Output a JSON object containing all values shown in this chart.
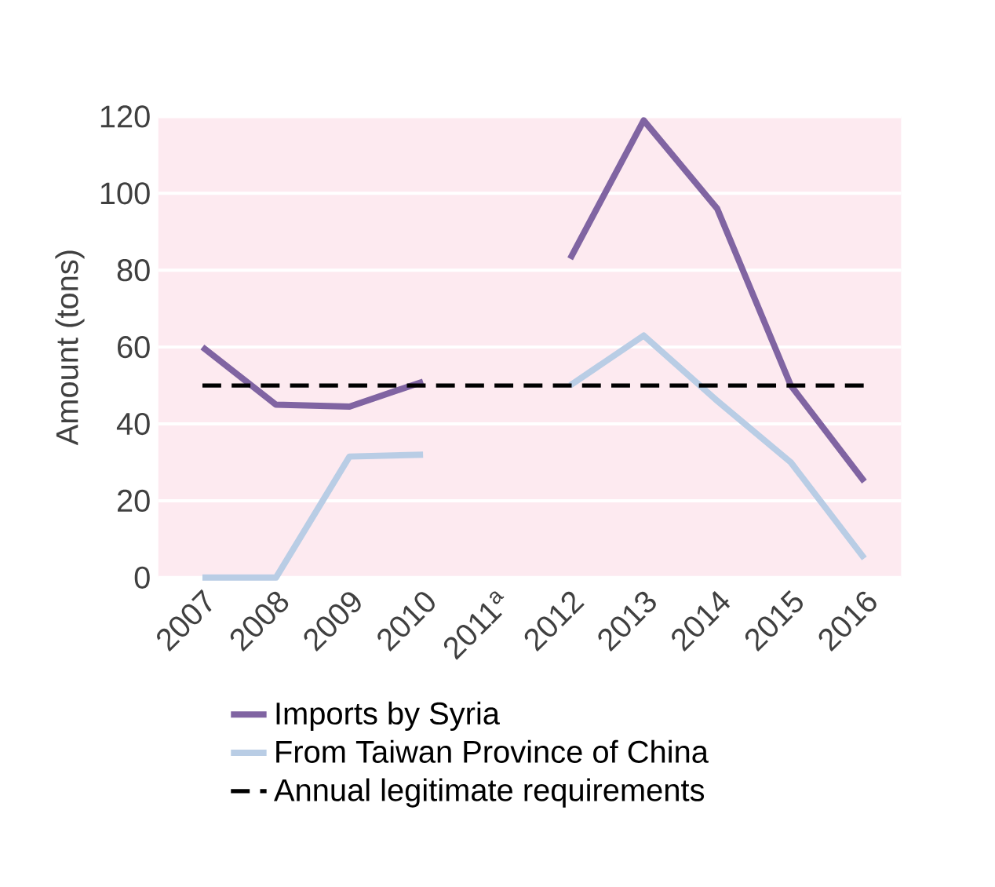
{
  "chart_data": {
    "type": "line",
    "ylabel": "Amount (tons)",
    "categories": [
      "2007",
      "2008",
      "2009",
      "2010",
      "2011$^{a}$",
      "2012",
      "2013",
      "2014",
      "2015",
      "2016"
    ],
    "series": [
      {
        "name": "Imports by Syria",
        "color": "#8064a2",
        "values": [
          60,
          45,
          44.5,
          51,
          null,
          83,
          119,
          96,
          50,
          25
        ]
      },
      {
        "name": "From Taiwan Province of China",
        "color": "#b9cde5",
        "values": [
          0,
          0,
          31.5,
          32,
          null,
          50,
          63,
          46,
          30,
          5
        ]
      }
    ],
    "ref_lines": [
      {
        "axis": "y",
        "value": 50,
        "label": "Annual legitimate requirements",
        "color": "#000000",
        "line_style": "dashed"
      }
    ],
    "ylim": [
      0,
      120
    ],
    "yticks": [
      0,
      20,
      40,
      60,
      80,
      100,
      120
    ],
    "grid": "y",
    "legend": "bottom",
    "marker": "none",
    "line_style": "solid"
  }
}
